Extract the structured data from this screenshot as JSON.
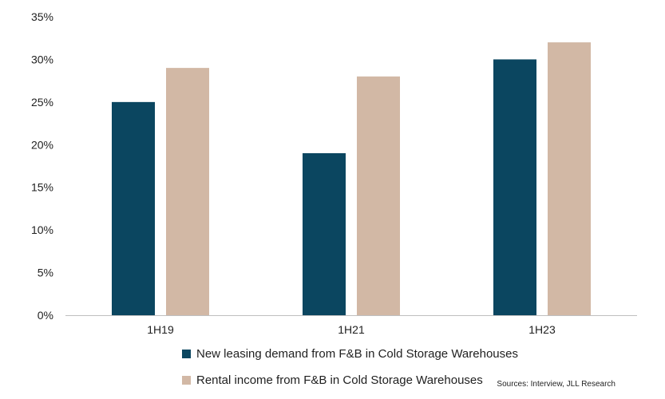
{
  "chart_data": {
    "type": "bar",
    "categories": [
      "1H19",
      "1H21",
      "1H23"
    ],
    "series": [
      {
        "name": "New leasing demand from F&B in Cold Storage Warehouses",
        "color": "#0b4660",
        "values": [
          25,
          19,
          30
        ]
      },
      {
        "name": "Rental income from F&B in Cold Storage Warehouses",
        "color": "#d2b8a5",
        "values": [
          29,
          28,
          32
        ]
      }
    ],
    "y_ticks": [
      "0%",
      "5%",
      "10%",
      "15%",
      "20%",
      "25%",
      "30%",
      "35%"
    ],
    "y_tick_values": [
      0,
      5,
      10,
      15,
      20,
      25,
      30,
      35
    ],
    "ylim": [
      0,
      35
    ],
    "grid": false,
    "legend_position": "bottom",
    "title": "",
    "xlabel": "",
    "ylabel": "",
    "source": "Sources: Interview, JLL Research"
  }
}
